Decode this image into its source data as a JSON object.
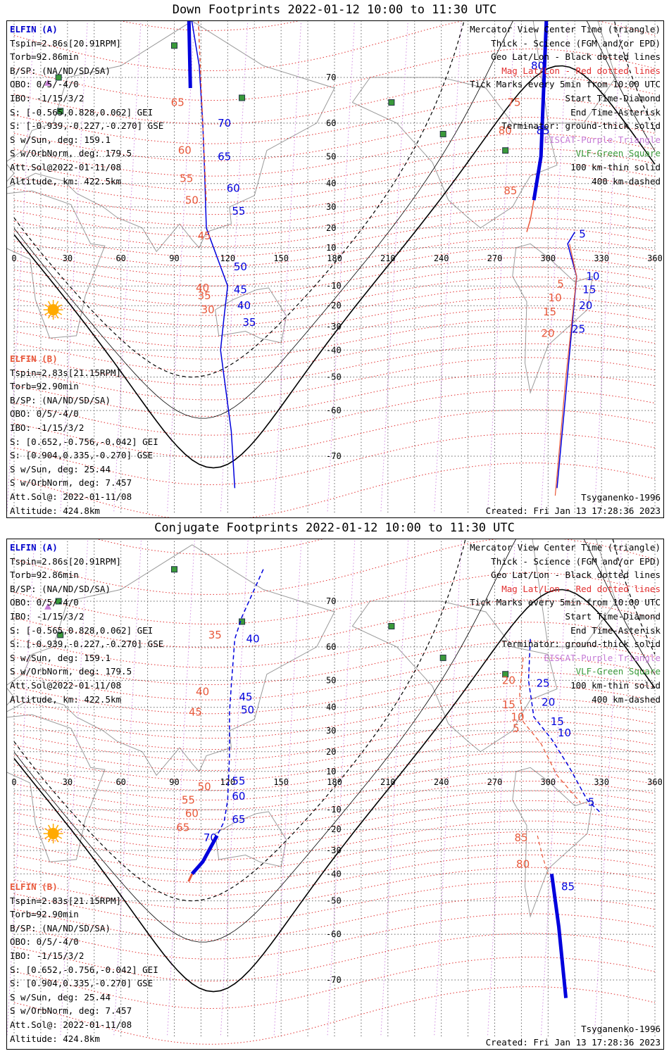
{
  "panels": [
    {
      "id": "down",
      "title": "Down Footprints 2022-01-12 10:00 to 11:30 UTC",
      "mode": "down"
    },
    {
      "id": "conj",
      "title": "Conjugate Footprints 2022-01-12 10:00 to 11:30 UTC",
      "mode": "conjugate"
    }
  ],
  "elfin_a": {
    "header": "ELFIN (A)",
    "lines": [
      "Tspin=2.86s[20.91RPM]",
      "Torb=92.86min",
      "B/SP: (NA/ND/SD/SA)",
      "OBO: 0/5/-4/0",
      "IBO: -1/15/3/2",
      "S: [-0.565,0.828,0.062] GEI",
      "S: [-0.939,-0.227,-0.270] GSE",
      "S w/Sun, deg: 159.1",
      "S w/OrbNorm, deg: 179.5",
      "Att.Sol@2022-01-11/08",
      "Altitude, km: 422.5km"
    ]
  },
  "elfin_b": {
    "header": "ELFIN (B)",
    "lines": [
      "Tspin=2.83s[21.15RPM]",
      "Torb=92.90min",
      "B/SP: (NA/ND/SD/SA)",
      "OBO: 0/5/-4/0",
      "IBO: -1/15/3/2",
      "S: [0.652,-0.756,-0.042] GEI",
      "S: [0.904,0.335,-0.270] GSE",
      "S w/Sun, deg: 25.44",
      "S w/OrbNorm, deg: 7.457",
      "Att.Sol@: 2022-01-11/08",
      "Altitude: 424.8km"
    ]
  },
  "legend": {
    "lines": [
      "Mercator View Center Time (triangle)",
      "Thick - Science (FGM and/or EPD)",
      "Geo Lat/Lon - Black dotted lines",
      "Mag Lat/Lon - Red dotted lines",
      "Tick Marks every 5min from 10:00 UTC",
      "Start Time-Diamond",
      "End Time-Asterisk",
      "Terminator: ground-thick solid",
      "EISCAT-Purple Triangle",
      "VLF-Green Square",
      "100 km-thin solid",
      "400 km-dashed"
    ],
    "line_colors": [
      "#000000",
      "#000000",
      "#000000",
      "#e23030",
      "#000000",
      "#000000",
      "#000000",
      "#000000",
      "#c57bd6",
      "#3a9a3a",
      "#000000",
      "#000000"
    ]
  },
  "model": "Tsyganenko-1996",
  "created": "Created: Fri Jan 13 17:28:36 2023",
  "map": {
    "lon_ticks": [
      "0",
      "30",
      "60",
      "90",
      "120",
      "150",
      "180",
      "210",
      "240",
      "270",
      "300",
      "330",
      "360"
    ],
    "lat_ticks": [
      "70",
      "60",
      "50",
      "40",
      "30",
      "20",
      "10",
      "-10",
      "-20",
      "-30",
      "-40",
      "-50",
      "-60",
      "-70"
    ],
    "lon_range": [
      0,
      360
    ],
    "colors": {
      "elfin_a": "#0000dd",
      "elfin_b": "#e8583a",
      "mag_grid": "#e23030",
      "geo_grid": "#555555",
      "eiscat": "#c57bd6",
      "vlf": "#3a9a3a",
      "sun": "#ffaa00"
    },
    "vlf_stations": [
      [
        90,
        75
      ],
      [
        25,
        70
      ],
      [
        26,
        63
      ],
      [
        128,
        66
      ],
      [
        212,
        65
      ],
      [
        241,
        57
      ],
      [
        276,
        52
      ]
    ],
    "eiscat_stations": [
      [
        19,
        69
      ]
    ],
    "sun_subsolar": [
      22,
      -22
    ]
  },
  "down_labels": {
    "a_ticks": [
      [
        "70",
        112,
        60
      ],
      [
        "65",
        112,
        50
      ],
      [
        "60",
        117,
        38
      ],
      [
        "55",
        120,
        28
      ],
      [
        "50",
        121,
        0
      ],
      [
        "45",
        121,
        -12
      ],
      [
        "40",
        123,
        -20
      ],
      [
        "35",
        126,
        -28
      ],
      [
        "80",
        288,
        72
      ],
      [
        "85",
        291,
        58
      ],
      [
        "10",
        319,
        -5
      ],
      [
        "15",
        317,
        -12
      ],
      [
        "20",
        315,
        -20
      ],
      [
        "25",
        311,
        -31
      ],
      [
        "5",
        315,
        17
      ]
    ],
    "b_ticks": [
      [
        "65",
        96,
        65
      ],
      [
        "60",
        100,
        52
      ],
      [
        "55",
        101,
        42
      ],
      [
        "50",
        104,
        33
      ],
      [
        "45",
        111,
        16
      ],
      [
        "40",
        110,
        -11
      ],
      [
        "35",
        111,
        -15
      ],
      [
        "30",
        113,
        -22
      ],
      [
        "75",
        285,
        65
      ],
      [
        "80",
        280,
        58
      ],
      [
        "85",
        283,
        37
      ],
      [
        "5",
        313,
        -9
      ],
      [
        "10",
        308,
        -16
      ],
      [
        "15",
        305,
        -23
      ],
      [
        "20",
        304,
        -33
      ]
    ]
  },
  "conj_labels": {
    "a_ticks": [
      [
        "40",
        128,
        62
      ],
      [
        "45",
        124,
        44
      ],
      [
        "50",
        125,
        39
      ],
      [
        "55",
        120,
        5
      ],
      [
        "60",
        120,
        -3
      ],
      [
        "65",
        120,
        -15
      ],
      [
        "70",
        104,
        -24
      ],
      [
        "25",
        291,
        49
      ],
      [
        "20",
        294,
        42
      ],
      [
        "15",
        299,
        34
      ],
      [
        "10",
        303,
        29
      ],
      [
        "5",
        320,
        -6
      ],
      [
        "85",
        305,
        -45
      ]
    ],
    "b_ticks": [
      [
        "35",
        117,
        63
      ],
      [
        "40",
        110,
        46
      ],
      [
        "45",
        106,
        38
      ],
      [
        "50",
        111,
        2
      ],
      [
        "55",
        102,
        -5
      ],
      [
        "60",
        104,
        -12
      ],
      [
        "65",
        99,
        -19
      ],
      [
        "20",
        282,
        50
      ],
      [
        "15",
        282,
        41
      ],
      [
        "10",
        287,
        36
      ],
      [
        "5",
        288,
        31
      ],
      [
        "85",
        289,
        -24
      ],
      [
        "80",
        290,
        -36
      ]
    ]
  }
}
